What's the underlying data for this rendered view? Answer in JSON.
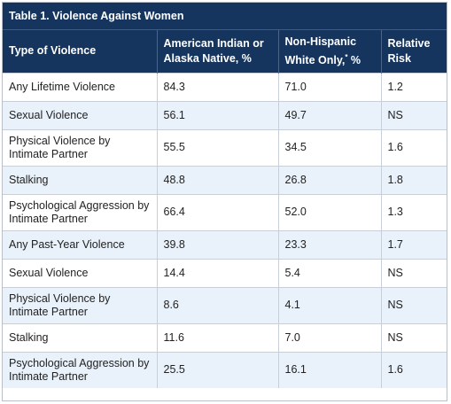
{
  "table": {
    "caption": "Table 1. Violence Against Women",
    "headers": [
      {
        "text": "Type of Violence",
        "sup": ""
      },
      {
        "text": "American Indian or Alaska Native, %",
        "sup": ""
      },
      {
        "text": "Non-Hispanic White Only,",
        "sup": "*",
        "suffix": " %"
      },
      {
        "text": "Relative Risk",
        "sup": ""
      }
    ],
    "rows": [
      {
        "type": "Any Lifetime Violence",
        "aian": "84.3",
        "white": "71.0",
        "rr": "1.2"
      },
      {
        "type": "Sexual Violence",
        "aian": "56.1",
        "white": "49.7",
        "rr": "NS"
      },
      {
        "type": "Physical Violence by Intimate Partner",
        "aian": "55.5",
        "white": "34.5",
        "rr": "1.6"
      },
      {
        "type": "Stalking",
        "aian": "48.8",
        "white": "26.8",
        "rr": "1.8"
      },
      {
        "type": "Psychological Aggression by Intimate Partner",
        "aian": "66.4",
        "white": "52.0",
        "rr": "1.3"
      },
      {
        "type": "Any Past-Year Violence",
        "aian": "39.8",
        "white": "23.3",
        "rr": "1.7"
      },
      {
        "type": "Sexual Violence",
        "aian": "14.4",
        "white": "5.4",
        "rr": "NS"
      },
      {
        "type": "Physical Violence by Intimate Partner",
        "aian": "8.6",
        "white": "4.1",
        "rr": "NS"
      },
      {
        "type": "Stalking",
        "aian": "11.6",
        "white": "7.0",
        "rr": "NS"
      },
      {
        "type": "Psychological Aggression by Intimate Partner",
        "aian": "25.5",
        "white": "16.1",
        "rr": "1.6"
      }
    ]
  },
  "colors": {
    "header_bg": "#15355f",
    "header_text": "#ffffff",
    "alt_row_bg": "#e9f1fa",
    "grid": "#c9cfd8"
  }
}
